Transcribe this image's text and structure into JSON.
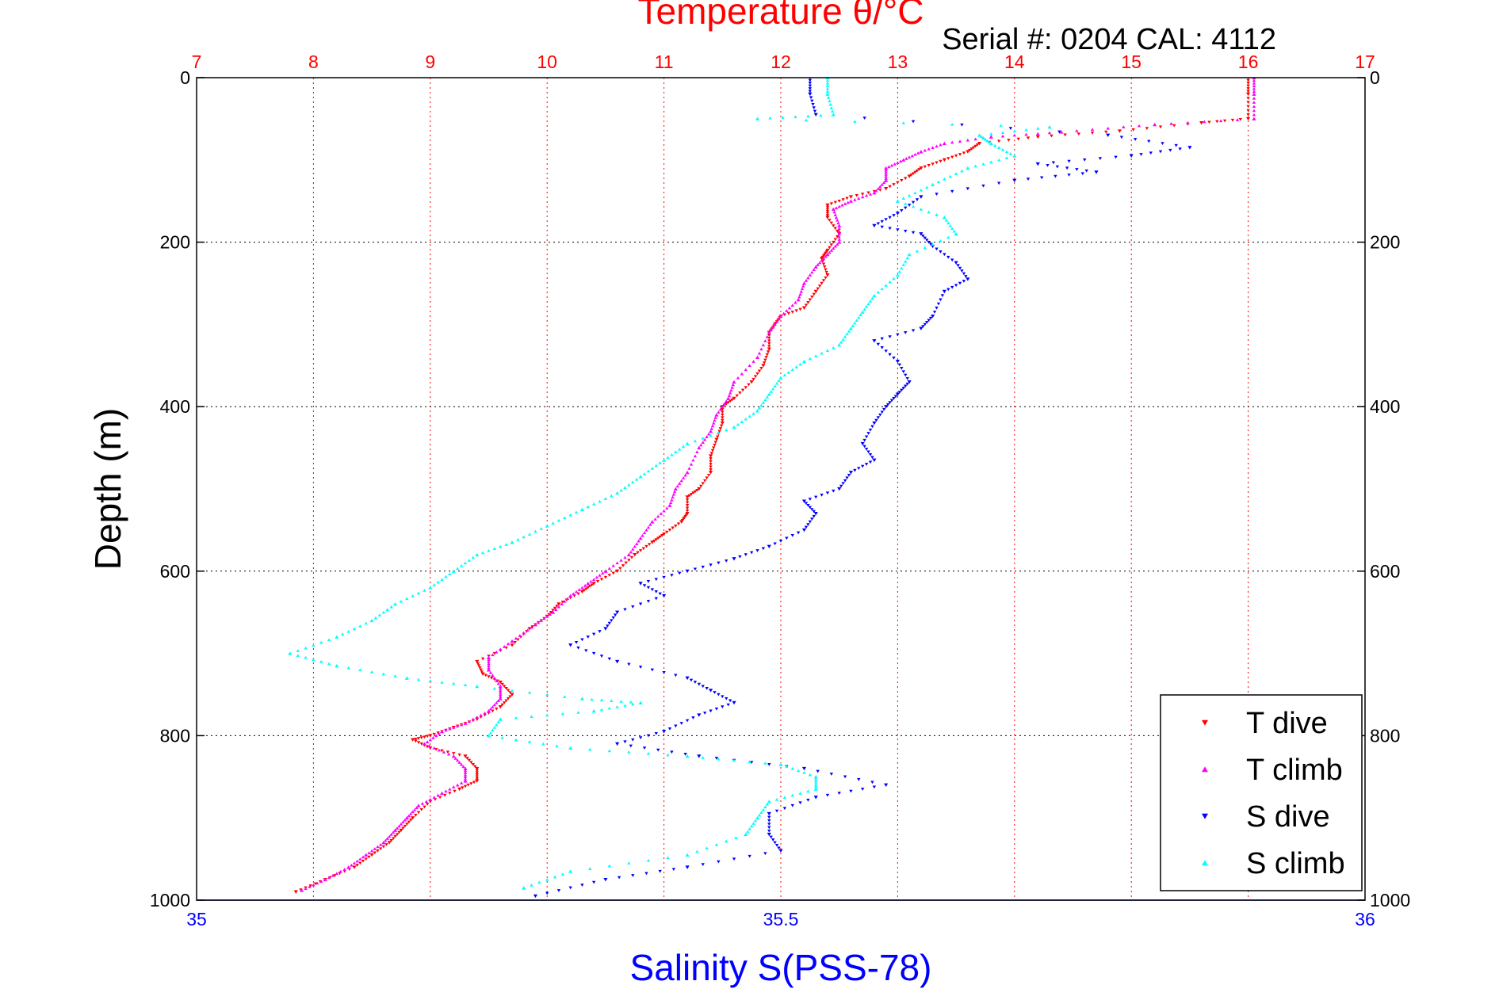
{
  "chart_data": {
    "type": "scatter",
    "title": "Temperature θ/°C",
    "annotation": "Serial #: 0204  CAL: 4112",
    "ylabel": "Depth (m)",
    "xlabel": "Salinity S(PSS-78)",
    "x_top_label": "Temperature θ/°C",
    "ylim": [
      0,
      1000
    ],
    "y_reversed": true,
    "y_ticks": [
      0,
      200,
      400,
      600,
      800,
      1000
    ],
    "temperature_axis": {
      "range": [
        7,
        17
      ],
      "ticks": [
        7,
        8,
        9,
        10,
        11,
        12,
        13,
        14,
        15,
        16,
        17
      ],
      "color": "#ff0000",
      "position": "top"
    },
    "salinity_axis": {
      "range": [
        35,
        36
      ],
      "ticks": [
        "35",
        "35.5",
        "36"
      ],
      "tick_values": [
        35,
        35.5,
        36
      ],
      "color": "#0000ff",
      "position": "bottom"
    },
    "grid": true,
    "legend_position": "bottom-right",
    "series": [
      {
        "name": "T dive",
        "axis": "temperature",
        "color": "#ff0000",
        "marker": "triangle-down",
        "points": [
          [
            16.0,
            0
          ],
          [
            16.0,
            20
          ],
          [
            16.0,
            50
          ],
          [
            15.6,
            55
          ],
          [
            14.9,
            65
          ],
          [
            14.2,
            72
          ],
          [
            13.7,
            80
          ],
          [
            13.6,
            90
          ],
          [
            13.4,
            100
          ],
          [
            13.2,
            110
          ],
          [
            13.1,
            120
          ],
          [
            12.9,
            135
          ],
          [
            12.6,
            145
          ],
          [
            12.4,
            155
          ],
          [
            12.4,
            170
          ],
          [
            12.5,
            190
          ],
          [
            12.4,
            210
          ],
          [
            12.35,
            220
          ],
          [
            12.4,
            240
          ],
          [
            12.3,
            260
          ],
          [
            12.2,
            280
          ],
          [
            12.0,
            290
          ],
          [
            11.95,
            300
          ],
          [
            11.9,
            310
          ],
          [
            11.9,
            330
          ],
          [
            11.85,
            350
          ],
          [
            11.75,
            370
          ],
          [
            11.6,
            390
          ],
          [
            11.5,
            400
          ],
          [
            11.5,
            420
          ],
          [
            11.45,
            440
          ],
          [
            11.4,
            460
          ],
          [
            11.4,
            480
          ],
          [
            11.3,
            500
          ],
          [
            11.2,
            510
          ],
          [
            11.2,
            530
          ],
          [
            11.15,
            540
          ],
          [
            11.0,
            555
          ],
          [
            10.9,
            565
          ],
          [
            10.75,
            580
          ],
          [
            10.6,
            600
          ],
          [
            10.4,
            615
          ],
          [
            10.3,
            625
          ],
          [
            10.1,
            640
          ],
          [
            10.0,
            655
          ],
          [
            9.85,
            670
          ],
          [
            9.7,
            690
          ],
          [
            9.4,
            710
          ],
          [
            9.45,
            725
          ],
          [
            9.6,
            735
          ],
          [
            9.7,
            750
          ],
          [
            9.6,
            765
          ],
          [
            9.4,
            780
          ],
          [
            9.2,
            790
          ],
          [
            9.0,
            800
          ],
          [
            8.85,
            805
          ],
          [
            9.0,
            815
          ],
          [
            9.3,
            825
          ],
          [
            9.4,
            840
          ],
          [
            9.4,
            855
          ],
          [
            9.25,
            865
          ],
          [
            9.0,
            880
          ],
          [
            8.85,
            900
          ],
          [
            8.75,
            915
          ],
          [
            8.65,
            930
          ],
          [
            8.5,
            945
          ],
          [
            8.35,
            960
          ],
          [
            8.1,
            975
          ],
          [
            7.85,
            990
          ]
        ]
      },
      {
        "name": "T climb",
        "axis": "temperature",
        "color": "#ff00ff",
        "marker": "triangle-up",
        "points": [
          [
            16.05,
            0
          ],
          [
            16.05,
            20
          ],
          [
            16.05,
            50
          ],
          [
            15.2,
            57
          ],
          [
            14.4,
            66
          ],
          [
            13.8,
            72
          ],
          [
            13.4,
            80
          ],
          [
            13.2,
            90
          ],
          [
            13.05,
            100
          ],
          [
            12.9,
            110
          ],
          [
            12.9,
            125
          ],
          [
            12.8,
            140
          ],
          [
            12.6,
            150
          ],
          [
            12.45,
            160
          ],
          [
            12.5,
            180
          ],
          [
            12.5,
            200
          ],
          [
            12.4,
            215
          ],
          [
            12.3,
            230
          ],
          [
            12.2,
            250
          ],
          [
            12.15,
            270
          ],
          [
            12.0,
            290
          ],
          [
            11.9,
            310
          ],
          [
            11.8,
            340
          ],
          [
            11.6,
            370
          ],
          [
            11.55,
            390
          ],
          [
            11.45,
            410
          ],
          [
            11.4,
            430
          ],
          [
            11.3,
            450
          ],
          [
            11.2,
            480
          ],
          [
            11.1,
            500
          ],
          [
            11.05,
            520
          ],
          [
            10.9,
            540
          ],
          [
            10.8,
            560
          ],
          [
            10.7,
            580
          ],
          [
            10.5,
            600
          ],
          [
            10.35,
            615
          ],
          [
            10.2,
            630
          ],
          [
            10.05,
            650
          ],
          [
            9.9,
            665
          ],
          [
            9.7,
            685
          ],
          [
            9.5,
            705
          ],
          [
            9.5,
            720
          ],
          [
            9.6,
            740
          ],
          [
            9.6,
            755
          ],
          [
            9.5,
            770
          ],
          [
            9.3,
            785
          ],
          [
            9.1,
            795
          ],
          [
            8.95,
            810
          ],
          [
            9.2,
            825
          ],
          [
            9.3,
            840
          ],
          [
            9.3,
            855
          ],
          [
            9.1,
            870
          ],
          [
            8.9,
            885
          ],
          [
            8.8,
            900
          ],
          [
            8.7,
            915
          ],
          [
            8.6,
            930
          ],
          [
            8.45,
            945
          ],
          [
            8.3,
            960
          ],
          [
            8.1,
            975
          ],
          [
            7.9,
            988
          ]
        ]
      },
      {
        "name": "S dive",
        "axis": "salinity",
        "color": "#0000ff",
        "marker": "triangle-down",
        "points": [
          [
            35.525,
            0
          ],
          [
            35.525,
            20
          ],
          [
            35.53,
            45
          ],
          [
            35.78,
            70
          ],
          [
            35.85,
            85
          ],
          [
            35.8,
            95
          ],
          [
            35.72,
            105
          ],
          [
            35.77,
            115
          ],
          [
            35.7,
            125
          ],
          [
            35.62,
            145
          ],
          [
            35.6,
            165
          ],
          [
            35.58,
            180
          ],
          [
            35.62,
            190
          ],
          [
            35.63,
            205
          ],
          [
            35.65,
            225
          ],
          [
            35.66,
            245
          ],
          [
            35.64,
            260
          ],
          [
            35.63,
            290
          ],
          [
            35.62,
            305
          ],
          [
            35.58,
            320
          ],
          [
            35.6,
            345
          ],
          [
            35.61,
            370
          ],
          [
            35.6,
            385
          ],
          [
            35.59,
            400
          ],
          [
            35.58,
            420
          ],
          [
            35.57,
            445
          ],
          [
            35.58,
            465
          ],
          [
            35.56,
            480
          ],
          [
            35.55,
            500
          ],
          [
            35.52,
            515
          ],
          [
            35.53,
            530
          ],
          [
            35.52,
            550
          ],
          [
            35.49,
            570
          ],
          [
            35.46,
            585
          ],
          [
            35.42,
            600
          ],
          [
            35.38,
            615
          ],
          [
            35.4,
            630
          ],
          [
            35.36,
            650
          ],
          [
            35.35,
            670
          ],
          [
            35.32,
            690
          ],
          [
            35.36,
            710
          ],
          [
            35.42,
            730
          ],
          [
            35.44,
            745
          ],
          [
            35.46,
            760
          ],
          [
            35.43,
            775
          ],
          [
            35.4,
            795
          ],
          [
            35.36,
            810
          ],
          [
            35.43,
            825
          ],
          [
            35.52,
            840
          ],
          [
            35.59,
            860
          ],
          [
            35.53,
            875
          ],
          [
            35.49,
            895
          ],
          [
            35.49,
            920
          ],
          [
            35.5,
            940
          ],
          [
            35.42,
            960
          ],
          [
            35.35,
            975
          ],
          [
            35.29,
            995
          ]
        ]
      },
      {
        "name": "S climb",
        "axis": "salinity",
        "color": "#00ffff",
        "marker": "triangle-up",
        "points": [
          [
            35.54,
            0
          ],
          [
            35.54,
            20
          ],
          [
            35.545,
            45
          ],
          [
            35.48,
            50
          ],
          [
            35.73,
            60
          ],
          [
            35.67,
            70
          ],
          [
            35.68,
            80
          ],
          [
            35.7,
            95
          ],
          [
            35.66,
            110
          ],
          [
            35.63,
            130
          ],
          [
            35.6,
            150
          ],
          [
            35.64,
            170
          ],
          [
            35.65,
            190
          ],
          [
            35.61,
            215
          ],
          [
            35.6,
            240
          ],
          [
            35.58,
            265
          ],
          [
            35.57,
            285
          ],
          [
            35.56,
            305
          ],
          [
            35.55,
            325
          ],
          [
            35.52,
            345
          ],
          [
            35.5,
            365
          ],
          [
            35.49,
            385
          ],
          [
            35.48,
            405
          ],
          [
            35.46,
            425
          ],
          [
            35.42,
            445
          ],
          [
            35.4,
            465
          ],
          [
            35.38,
            485
          ],
          [
            35.36,
            505
          ],
          [
            35.33,
            525
          ],
          [
            35.3,
            545
          ],
          [
            35.27,
            565
          ],
          [
            35.24,
            580
          ],
          [
            35.22,
            600
          ],
          [
            35.2,
            620
          ],
          [
            35.17,
            640
          ],
          [
            35.15,
            660
          ],
          [
            35.12,
            680
          ],
          [
            35.08,
            700
          ],
          [
            35.12,
            715
          ],
          [
            35.18,
            730
          ],
          [
            35.24,
            740
          ],
          [
            35.33,
            755
          ],
          [
            35.38,
            760
          ],
          [
            35.34,
            770
          ],
          [
            35.26,
            780
          ],
          [
            35.25,
            800
          ],
          [
            35.32,
            815
          ],
          [
            35.42,
            825
          ],
          [
            35.5,
            835
          ],
          [
            35.53,
            850
          ],
          [
            35.53,
            865
          ],
          [
            35.49,
            880
          ],
          [
            35.48,
            900
          ],
          [
            35.47,
            920
          ],
          [
            35.42,
            945
          ],
          [
            35.32,
            965
          ],
          [
            35.28,
            985
          ]
        ]
      }
    ]
  }
}
